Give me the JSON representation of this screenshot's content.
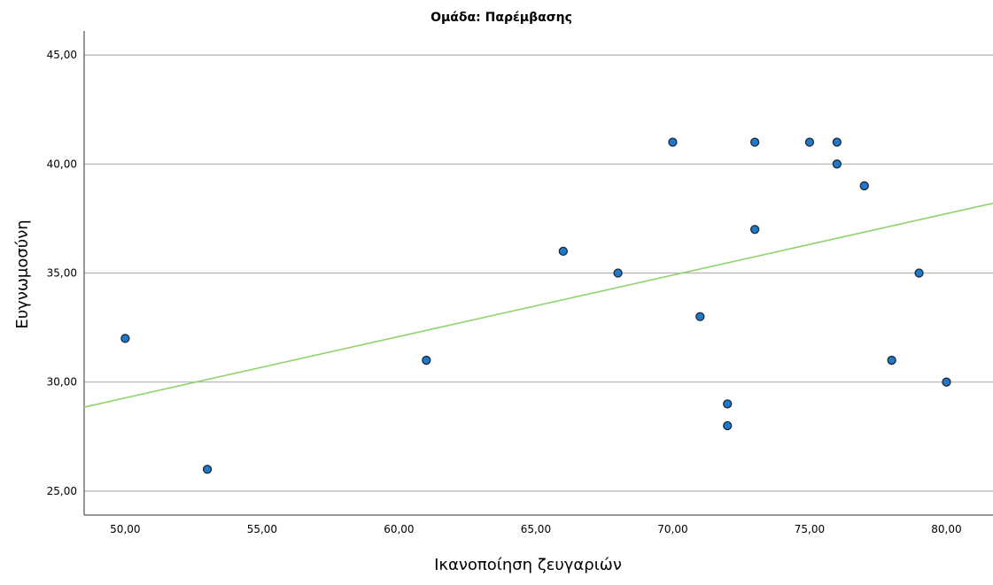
{
  "chart_data": {
    "type": "scatter",
    "title": "Ομάδα: Παρέμβασης",
    "xlabel": "Ικανοποίηση ζευγαριών",
    "ylabel": "Ευγνωμοσύνη",
    "xlim": [
      48.5,
      81.7
    ],
    "ylim": [
      23.9,
      46.1
    ],
    "x_ticks": [
      50,
      55,
      60,
      65,
      70,
      75,
      80
    ],
    "x_tick_labels": [
      "50,00",
      "55,00",
      "60,00",
      "65,00",
      "70,00",
      "75,00",
      "80,00"
    ],
    "y_ticks": [
      25,
      30,
      35,
      40,
      45
    ],
    "y_tick_labels": [
      "25,00",
      "30,00",
      "35,00",
      "40,00",
      "45,00"
    ],
    "grid": "horizontal",
    "colors": {
      "point_fill": "#1f78c8",
      "point_stroke": "#1b2a3a",
      "fit_line": "#8fd46a",
      "gridline": "#b3b3b3",
      "axis": "#333333"
    },
    "points": [
      {
        "x": 50,
        "y": 32
      },
      {
        "x": 53,
        "y": 26
      },
      {
        "x": 61,
        "y": 31
      },
      {
        "x": 66,
        "y": 36
      },
      {
        "x": 68,
        "y": 35
      },
      {
        "x": 70,
        "y": 41
      },
      {
        "x": 71,
        "y": 33
      },
      {
        "x": 72,
        "y": 29
      },
      {
        "x": 72,
        "y": 28
      },
      {
        "x": 73,
        "y": 41
      },
      {
        "x": 73,
        "y": 37
      },
      {
        "x": 75,
        "y": 41
      },
      {
        "x": 76,
        "y": 41
      },
      {
        "x": 76,
        "y": 40
      },
      {
        "x": 77,
        "y": 39
      },
      {
        "x": 78,
        "y": 31
      },
      {
        "x": 79,
        "y": 35
      },
      {
        "x": 80,
        "y": 30
      }
    ],
    "fit_line": {
      "x": [
        48.5,
        81.7
      ],
      "y": [
        28.85,
        38.2
      ]
    }
  }
}
